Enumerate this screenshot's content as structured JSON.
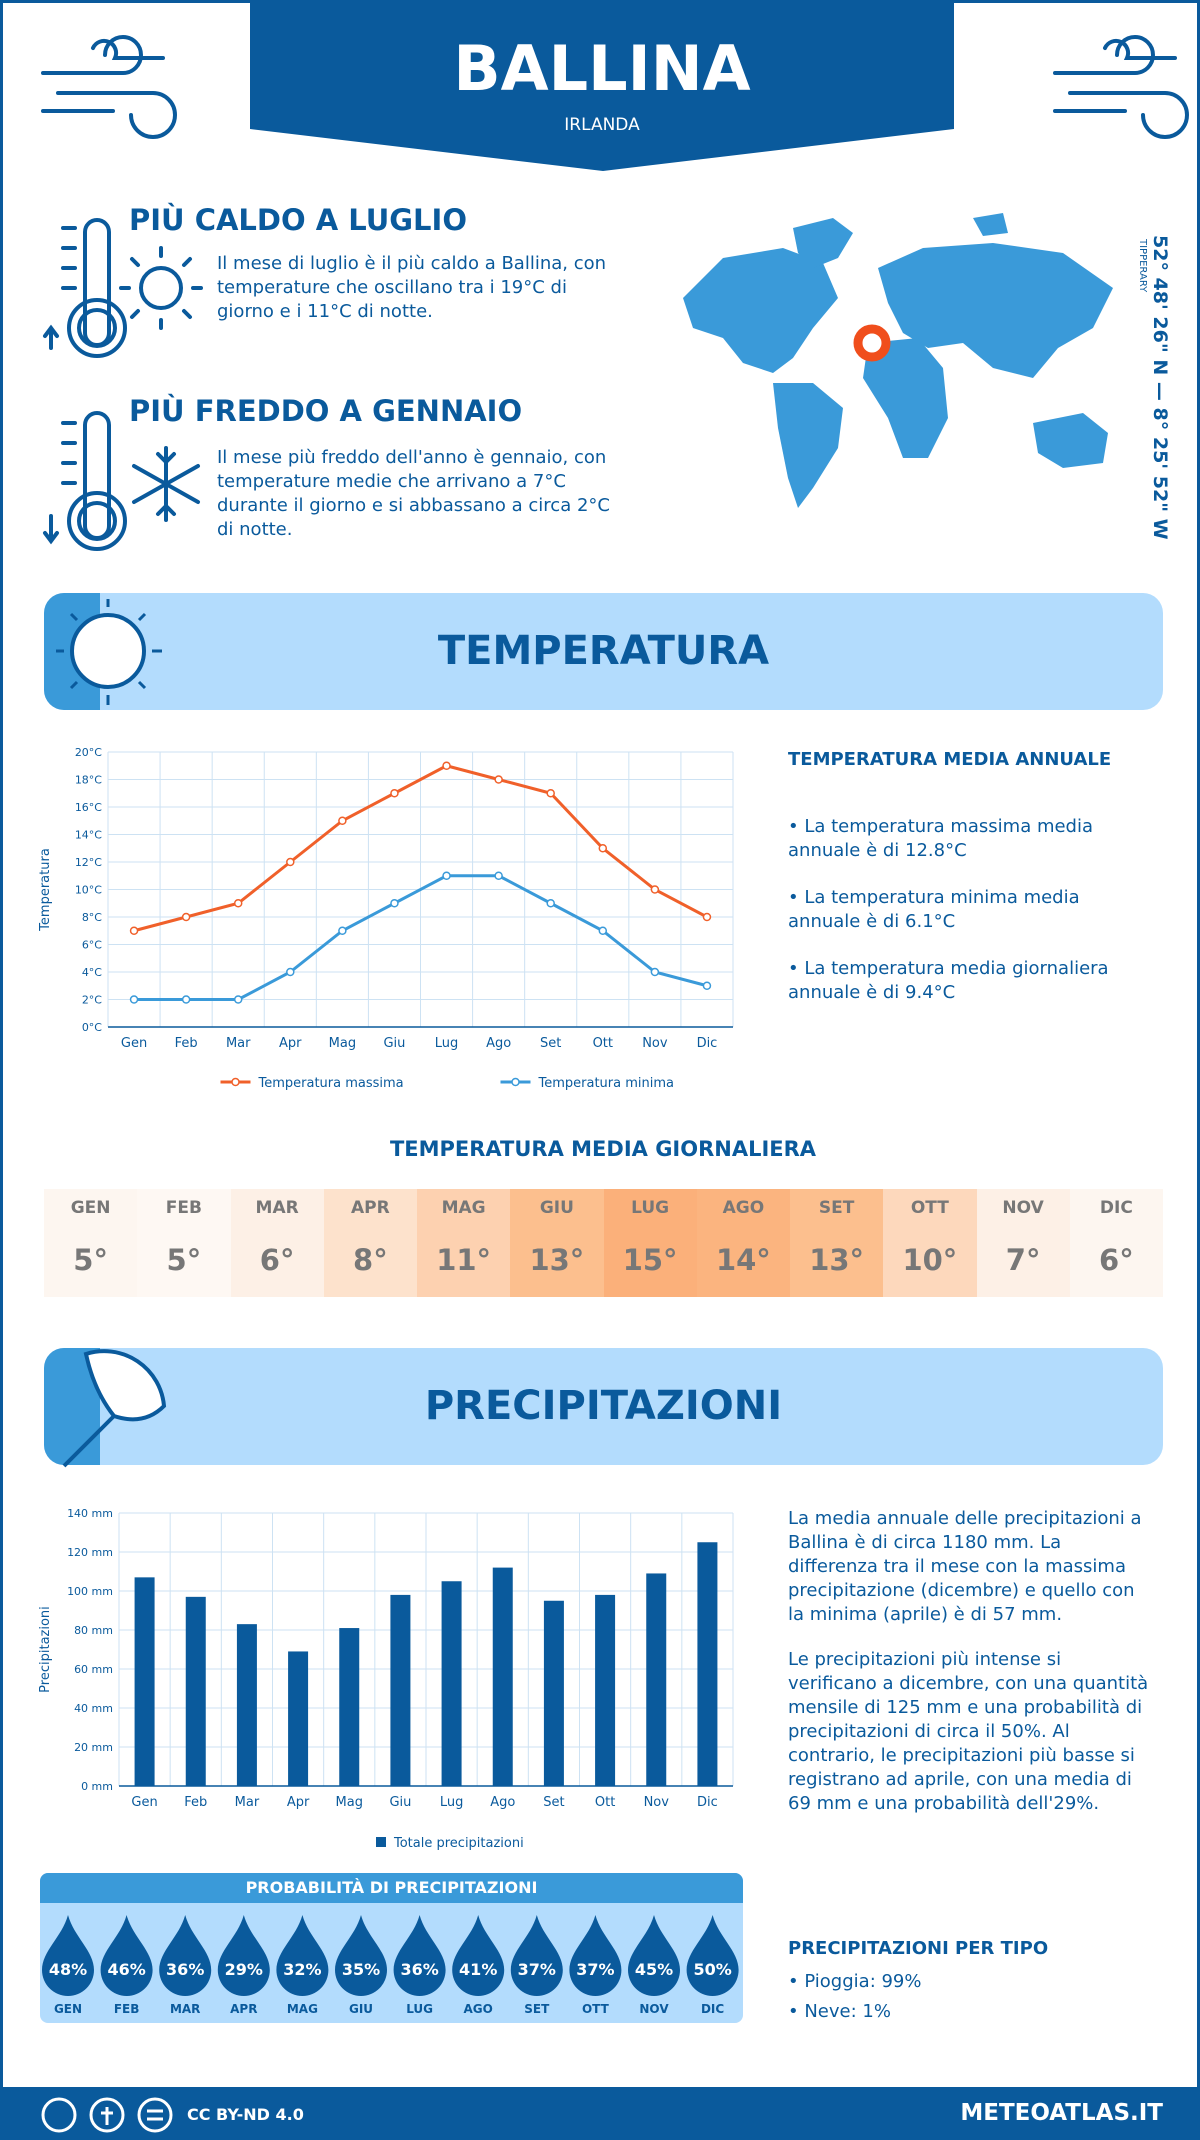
{
  "header": {
    "title": "BALLINA",
    "subtitle": "IRLANDA"
  },
  "location": {
    "coordinates": "52° 48' 26\" N — 8° 25' 52\" W",
    "region": "TIPPERARY"
  },
  "hottest": {
    "title": "PIÙ CALDO A LUGLIO",
    "text": "Il mese di luglio è il più caldo a Ballina, con temperature che oscillano tra i 19°C di giorno e i 11°C di notte."
  },
  "coldest": {
    "title": "PIÙ FREDDO A GENNAIO",
    "text": "Il mese più freddo dell'anno è gennaio, con temperature medie che arrivano a 7°C durante il giorno e si abbassano a circa 2°C di notte."
  },
  "temperature_section": {
    "title": "TEMPERATURA"
  },
  "annual_temperature": {
    "title": "TEMPERATURA MEDIA ANNUALE",
    "items": [
      "• La temperatura massima media annuale è di 12.8°C",
      "• La temperatura minima media annuale è di 6.1°C",
      "• La temperatura media giornaliera annuale è di 9.4°C"
    ]
  },
  "daily_temperature": {
    "title": "TEMPERATURA MEDIA GIORNALIERA",
    "months": [
      "GEN",
      "FEB",
      "MAR",
      "APR",
      "MAG",
      "GIU",
      "LUG",
      "AGO",
      "SET",
      "OTT",
      "NOV",
      "DIC"
    ],
    "values": [
      "5°",
      "5°",
      "6°",
      "8°",
      "11°",
      "13°",
      "15°",
      "14°",
      "13°",
      "10°",
      "7°",
      "6°"
    ],
    "colors": [
      "#fdf6f0",
      "#fef8f3",
      "#fdf0e6",
      "#fde2cc",
      "#fdd1b0",
      "#fcbf8e",
      "#fbb07a",
      "#fbb47f",
      "#fcbf8e",
      "#fdd8bc",
      "#fdf0e6",
      "#fdf6f0"
    ]
  },
  "precipitation_section": {
    "title": "PRECIPITAZIONI"
  },
  "precipitation_text": [
    "La media annuale delle precipitazioni a Ballina è di circa 1180 mm. La differenza tra il mese con la massima precipitazione (dicembre) e quello con la minima (aprile) è di 57 mm.",
    "Le precipitazioni più intense si verificano a dicembre, con una quantità mensile di 125 mm e una probabilità di precipitazioni di circa il 50%. Al contrario, le precipitazioni più basse si registrano ad aprile, con una media di 69 mm e una probabilità dell'29%."
  ],
  "probability": {
    "title": "PROBABILITÀ DI PRECIPITAZIONI",
    "months": [
      "GEN",
      "FEB",
      "MAR",
      "APR",
      "MAG",
      "GIU",
      "LUG",
      "AGO",
      "SET",
      "OTT",
      "NOV",
      "DIC"
    ],
    "values": [
      "48%",
      "46%",
      "36%",
      "29%",
      "32%",
      "35%",
      "36%",
      "41%",
      "37%",
      "37%",
      "45%",
      "50%"
    ]
  },
  "precipitation_types": {
    "title": "PRECIPITAZIONI PER TIPO",
    "items": [
      "• Pioggia: 99%",
      "• Neve: 1%"
    ]
  },
  "footer": {
    "license": "CC BY-ND 4.0",
    "site": "METEOATLAS.IT"
  },
  "chart_data": [
    {
      "type": "line",
      "ylabel": "Temperatura",
      "categories": [
        "Gen",
        "Feb",
        "Mar",
        "Apr",
        "Mag",
        "Giu",
        "Lug",
        "Ago",
        "Set",
        "Ott",
        "Nov",
        "Dic"
      ],
      "series": [
        {
          "name": "Temperatura massima",
          "color": "#f0602a",
          "values": [
            7,
            8,
            9,
            12,
            15,
            17,
            19,
            18,
            17,
            13,
            10,
            8
          ]
        },
        {
          "name": "Temperatura minima",
          "color": "#3a9ad9",
          "values": [
            2,
            2,
            2,
            4,
            7,
            9,
            11,
            11,
            9,
            7,
            4,
            3
          ]
        }
      ],
      "ylim": [
        0,
        20
      ],
      "yticks": [
        {
          "value": 0,
          "label": "0°C"
        },
        {
          "value": 2,
          "label": "2°C"
        },
        {
          "value": 4,
          "label": "4°C"
        },
        {
          "value": 6,
          "label": "6°C"
        },
        {
          "value": 8,
          "label": "8°C"
        },
        {
          "value": 10,
          "label": "10°C"
        },
        {
          "value": 12,
          "label": "12°C"
        },
        {
          "value": 14,
          "label": "14°C"
        },
        {
          "value": 16,
          "label": "16°C"
        },
        {
          "value": 18,
          "label": "18°C"
        },
        {
          "value": 20,
          "label": "20°C"
        }
      ],
      "grid": true
    },
    {
      "type": "bar",
      "ylabel": "Precipitazioni",
      "categories": [
        "Gen",
        "Feb",
        "Mar",
        "Apr",
        "Mag",
        "Giu",
        "Lug",
        "Ago",
        "Set",
        "Ott",
        "Nov",
        "Dic"
      ],
      "series": [
        {
          "name": "Totale precipitazioni",
          "color": "#0a5a9c",
          "values": [
            107,
            97,
            83,
            69,
            81,
            98,
            105,
            112,
            95,
            98,
            109,
            125
          ]
        }
      ],
      "ylim": [
        0,
        140
      ],
      "yticks": [
        {
          "value": 0,
          "label": "0 mm"
        },
        {
          "value": 20,
          "label": "20 mm"
        },
        {
          "value": 40,
          "label": "40 mm"
        },
        {
          "value": 60,
          "label": "60 mm"
        },
        {
          "value": 80,
          "label": "80 mm"
        },
        {
          "value": 100,
          "label": "100 mm"
        },
        {
          "value": 120,
          "label": "120 mm"
        },
        {
          "value": 140,
          "label": "140 mm"
        }
      ],
      "grid": true
    }
  ]
}
